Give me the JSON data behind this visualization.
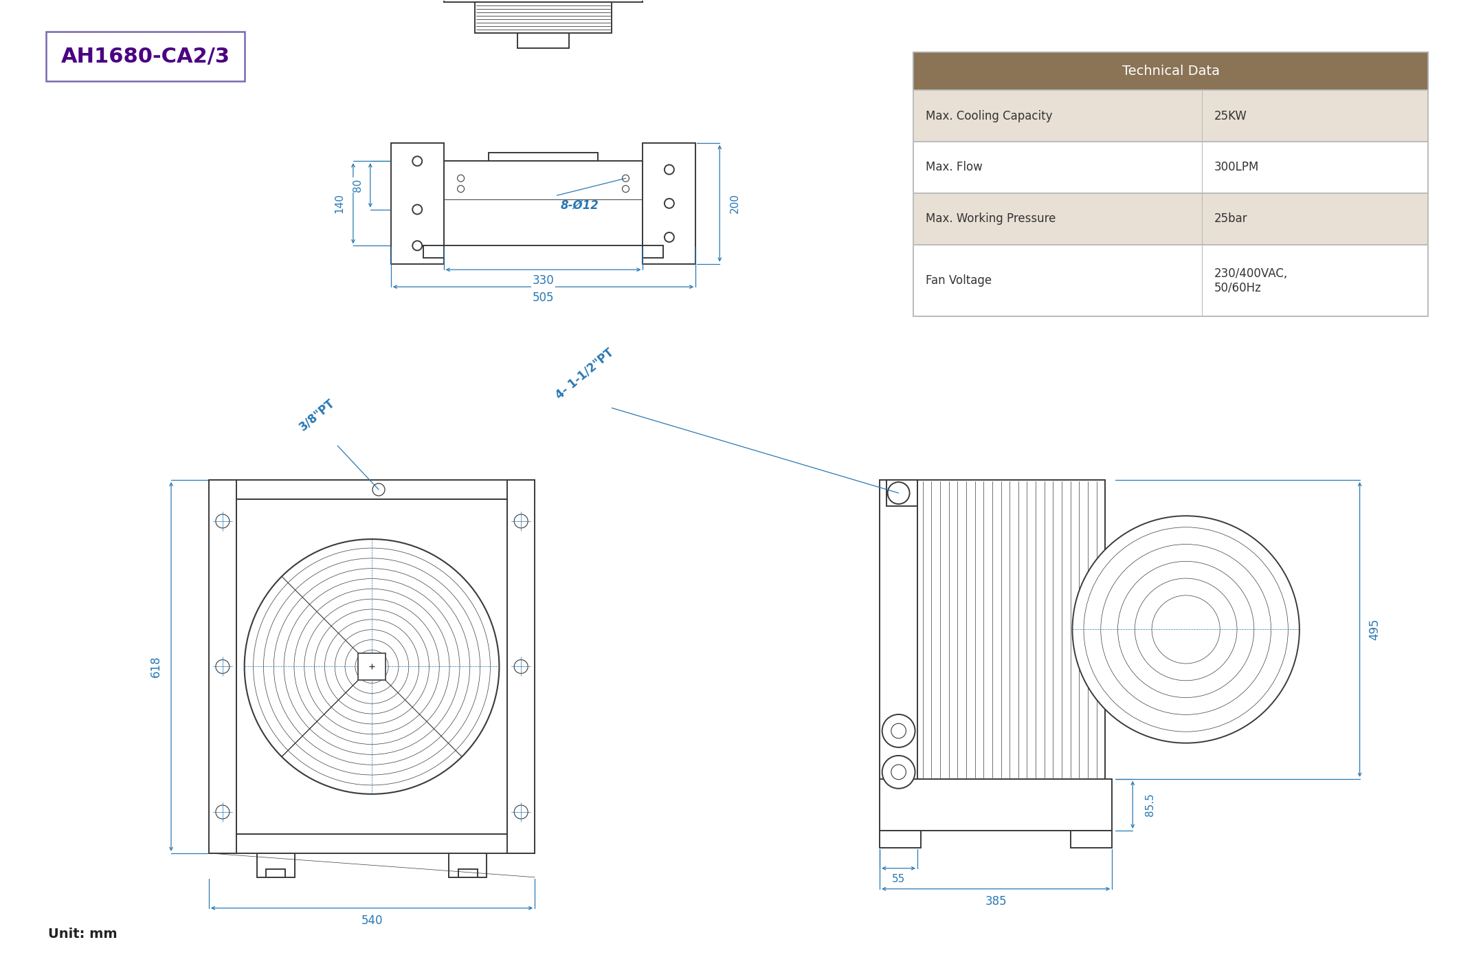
{
  "title": "AH1680-CA2/3",
  "title_color": "#4B0082",
  "title_box_color": "#7B68B0",
  "bg_color": "#ffffff",
  "line_color": "#3a3a3a",
  "dim_color": "#2878b4",
  "table_header_bg": "#8B7355",
  "table_row_bg_odd": "#e8e0d5",
  "table_row_bg_even": "#ffffff",
  "table_header_text": "#ffffff",
  "table_text": "#333333",
  "unit_text": "Unit: mm",
  "tech_data": {
    "header": "Technical Data",
    "rows": [
      [
        "Max. Cooling Capacity",
        "25KW"
      ],
      [
        "Max. Flow",
        "300LPM"
      ],
      [
        "Max. Working Pressure",
        "25bar"
      ],
      [
        "Fan Voltage",
        "230/400VAC,\n50/60Hz"
      ]
    ]
  },
  "dims_top": {
    "d80": "80",
    "d140": "140",
    "d200": "200",
    "d330": "330",
    "d505": "505",
    "holes": "8-Ø12"
  },
  "dims_front": {
    "d618": "618",
    "d540": "540",
    "port_38": "3/8\"PT",
    "port_112": "4- 1-1/2\"PT"
  },
  "dims_side": {
    "d495": "495",
    "d85": "85.5",
    "d55": "55",
    "d385": "385"
  }
}
